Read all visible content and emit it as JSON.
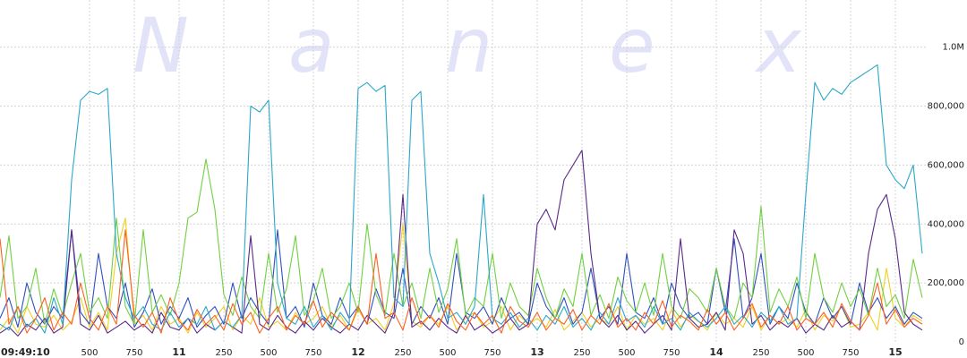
{
  "chart_data": {
    "type": "line",
    "watermark": [
      "N",
      "a",
      "n",
      "e",
      "x"
    ],
    "x": [
      10.0,
      10.05,
      10.1,
      10.15,
      10.2,
      10.25,
      10.3,
      10.35,
      10.4,
      10.45,
      10.5,
      10.55,
      10.6,
      10.65,
      10.7,
      10.75,
      10.8,
      10.85,
      10.9,
      10.95,
      11.0,
      11.05,
      11.1,
      11.15,
      11.2,
      11.25,
      11.3,
      11.35,
      11.4,
      11.45,
      11.5,
      11.55,
      11.6,
      11.65,
      11.7,
      11.75,
      11.8,
      11.85,
      11.9,
      11.95,
      12.0,
      12.05,
      12.1,
      12.15,
      12.2,
      12.25,
      12.3,
      12.35,
      12.4,
      12.45,
      12.5,
      12.55,
      12.6,
      12.65,
      12.7,
      12.75,
      12.8,
      12.85,
      12.9,
      12.95,
      13.0,
      13.05,
      13.1,
      13.15,
      13.2,
      13.25,
      13.3,
      13.35,
      13.4,
      13.45,
      13.5,
      13.55,
      13.6,
      13.65,
      13.7,
      13.75,
      13.8,
      13.85,
      13.9,
      13.95,
      14.0,
      14.05,
      14.1,
      14.15,
      14.2,
      14.25,
      14.3,
      14.35,
      14.4,
      14.45,
      14.5,
      14.55,
      14.6,
      14.65,
      14.7,
      14.75,
      14.8,
      14.85,
      14.9,
      14.95,
      15.0,
      15.05,
      15.1,
      15.15
    ],
    "series": [
      {
        "color": "#f0d020",
        "values": [
          40000,
          80000,
          30000,
          120000,
          60000,
          50000,
          90000,
          40000,
          70000,
          150000,
          50000,
          100000,
          40000,
          300000,
          420000,
          60000,
          90000,
          40000,
          120000,
          60000,
          80000,
          30000,
          100000,
          50000,
          80000,
          120000,
          40000,
          90000,
          60000,
          150000,
          50000,
          70000,
          40000,
          100000,
          60000,
          80000,
          120000,
          50000,
          90000,
          40000,
          110000,
          60000,
          80000,
          40000,
          130000,
          400000,
          70000,
          50000,
          90000,
          60000,
          120000,
          40000,
          80000,
          100000,
          50000,
          70000,
          120000,
          40000,
          90000,
          60000,
          80000,
          50000,
          110000,
          40000,
          70000,
          100000,
          50000,
          80000,
          60000,
          120000,
          40000,
          90000,
          60000,
          80000,
          40000,
          110000,
          50000,
          90000,
          70000,
          40000,
          100000,
          60000,
          80000,
          50000,
          120000,
          40000,
          90000,
          60000,
          80000,
          50000,
          110000,
          40000,
          90000,
          70000,
          120000,
          50000,
          60000,
          100000,
          40000,
          250000,
          80000,
          50000,
          90000,
          70000
        ]
      },
      {
        "color": "#3050c0",
        "values": [
          80000,
          150000,
          50000,
          200000,
          100000,
          60000,
          120000,
          80000,
          380000,
          100000,
          60000,
          300000,
          120000,
          80000,
          200000,
          50000,
          100000,
          180000,
          60000,
          120000,
          80000,
          150000,
          50000,
          90000,
          120000,
          60000,
          200000,
          80000,
          150000,
          100000,
          60000,
          380000,
          80000,
          120000,
          50000,
          200000,
          90000,
          60000,
          150000,
          80000,
          120000,
          60000,
          180000,
          100000,
          80000,
          250000,
          60000,
          120000,
          80000,
          150000,
          60000,
          300000,
          100000,
          80000,
          120000,
          60000,
          150000,
          80000,
          100000,
          60000,
          200000,
          120000,
          80000,
          150000,
          60000,
          100000,
          250000,
          80000,
          120000,
          60000,
          300000,
          100000,
          80000,
          150000,
          60000,
          200000,
          120000,
          80000,
          100000,
          60000,
          250000,
          100000,
          350000,
          80000,
          150000,
          300000,
          60000,
          120000,
          80000,
          200000,
          100000,
          60000,
          150000,
          80000,
          120000,
          60000,
          200000,
          100000,
          150000,
          80000,
          120000,
          60000,
          100000,
          80000
        ]
      },
      {
        "color": "#70d040",
        "values": [
          150000,
          360000,
          80000,
          120000,
          250000,
          60000,
          180000,
          90000,
          200000,
          300000,
          100000,
          150000,
          80000,
          420000,
          120000,
          60000,
          380000,
          100000,
          160000,
          90000,
          200000,
          420000,
          440000,
          620000,
          450000,
          160000,
          90000,
          220000,
          120000,
          80000,
          300000,
          100000,
          180000,
          360000,
          90000,
          140000,
          250000,
          80000,
          120000,
          200000,
          100000,
          400000,
          160000,
          90000,
          300000,
          120000,
          200000,
          80000,
          250000,
          100000,
          180000,
          350000,
          90000,
          150000,
          120000,
          300000,
          80000,
          200000,
          120000,
          90000,
          250000,
          150000,
          80000,
          180000,
          120000,
          300000,
          90000,
          160000,
          80000,
          220000,
          140000,
          100000,
          200000,
          90000,
          300000,
          120000,
          80000,
          180000,
          150000,
          100000,
          250000,
          120000,
          80000,
          200000,
          150000,
          460000,
          100000,
          180000,
          120000,
          220000,
          80000,
          300000,
          150000,
          100000,
          200000,
          120000,
          180000,
          90000,
          250000,
          120000,
          160000,
          80000,
          280000,
          150000
        ]
      },
      {
        "color": "#5a2a8a",
        "values": [
          30000,
          50000,
          20000,
          60000,
          40000,
          80000,
          30000,
          50000,
          380000,
          60000,
          40000,
          90000,
          30000,
          50000,
          70000,
          40000,
          60000,
          30000,
          100000,
          50000,
          40000,
          80000,
          30000,
          60000,
          40000,
          70000,
          50000,
          30000,
          360000,
          60000,
          40000,
          90000,
          50000,
          30000,
          70000,
          40000,
          80000,
          50000,
          30000,
          60000,
          40000,
          90000,
          60000,
          30000,
          100000,
          500000,
          50000,
          70000,
          40000,
          80000,
          50000,
          30000,
          90000,
          40000,
          60000,
          30000,
          50000,
          80000,
          40000,
          60000,
          400000,
          450000,
          380000,
          550000,
          600000,
          650000,
          300000,
          80000,
          50000,
          90000,
          40000,
          70000,
          30000,
          60000,
          90000,
          40000,
          350000,
          80000,
          50000,
          60000,
          100000,
          40000,
          380000,
          300000,
          60000,
          90000,
          40000,
          70000,
          50000,
          80000,
          30000,
          60000,
          40000,
          90000,
          50000,
          70000,
          40000,
          300000,
          450000,
          500000,
          350000,
          100000,
          60000,
          40000
        ]
      },
      {
        "color": "#2aa8c8",
        "values": [
          60000,
          40000,
          120000,
          50000,
          80000,
          30000,
          150000,
          60000,
          550000,
          820000,
          850000,
          840000,
          860000,
          300000,
          150000,
          80000,
          120000,
          60000,
          40000,
          100000,
          50000,
          80000,
          60000,
          120000,
          40000,
          70000,
          50000,
          90000,
          800000,
          780000,
          820000,
          200000,
          80000,
          60000,
          120000,
          50000,
          90000,
          40000,
          100000,
          60000,
          860000,
          880000,
          850000,
          870000,
          150000,
          120000,
          820000,
          850000,
          300000,
          200000,
          80000,
          100000,
          60000,
          120000,
          500000,
          80000,
          60000,
          100000,
          50000,
          80000,
          40000,
          90000,
          60000,
          120000,
          50000,
          80000,
          40000,
          100000,
          60000,
          150000,
          70000,
          90000,
          50000,
          120000,
          60000,
          80000,
          40000,
          100000,
          70000,
          50000,
          80000,
          120000,
          60000,
          90000,
          50000,
          100000,
          70000,
          120000,
          60000,
          80000,
          500000,
          880000,
          820000,
          860000,
          840000,
          880000,
          900000,
          920000,
          940000,
          600000,
          550000,
          520000,
          600000,
          300000
        ]
      },
      {
        "color": "#ff6020",
        "values": [
          350000,
          60000,
          120000,
          30000,
          80000,
          150000,
          40000,
          100000,
          60000,
          200000,
          80000,
          40000,
          120000,
          60000,
          380000,
          90000,
          50000,
          100000,
          30000,
          150000,
          70000,
          40000,
          110000,
          60000,
          90000,
          40000,
          130000,
          60000,
          100000,
          30000,
          80000,
          120000,
          40000,
          90000,
          60000,
          140000,
          50000,
          100000,
          70000,
          40000,
          120000,
          60000,
          300000,
          80000,
          100000,
          40000,
          150000,
          60000,
          90000,
          50000,
          130000,
          70000,
          40000,
          100000,
          60000,
          90000,
          30000,
          120000,
          70000,
          50000,
          100000,
          40000,
          80000,
          60000,
          110000,
          40000,
          90000,
          60000,
          130000,
          50000,
          80000,
          40000,
          100000,
          60000,
          140000,
          50000,
          90000,
          70000,
          40000,
          110000,
          60000,
          100000,
          40000,
          80000,
          130000,
          50000,
          90000,
          60000,
          120000,
          40000,
          80000,
          60000,
          100000,
          50000,
          130000,
          70000,
          40000,
          90000,
          200000,
          60000,
          110000,
          50000,
          80000,
          60000
        ]
      }
    ],
    "xlim": [
      10,
      15.175
    ],
    "xticks": [
      {
        "value": 10,
        "label": "09:49:10"
      },
      {
        "value": 10.5,
        "label": "500"
      },
      {
        "value": 10.75,
        "label": "750"
      },
      11,
      {
        "value": 11.25,
        "label": "250"
      },
      {
        "value": 11.5,
        "label": "500"
      },
      {
        "value": 11.75,
        "label": "750"
      },
      12,
      {
        "value": 12.25,
        "label": "250"
      },
      {
        "value": 12.5,
        "label": "500"
      },
      {
        "value": 12.75,
        "label": "750"
      },
      13,
      {
        "value": 13.25,
        "label": "250"
      },
      {
        "value": 13.5,
        "label": "500"
      },
      {
        "value": 13.75,
        "label": "750"
      },
      14,
      {
        "value": 14.25,
        "label": "250"
      },
      {
        "value": 14.5,
        "label": "500"
      },
      {
        "value": 14.75,
        "label": "750"
      },
      15
    ],
    "ylim": [
      0,
      1160000
    ],
    "yticks": [
      0,
      {
        "value": 200000,
        "label": "200,000"
      },
      {
        "value": 400000,
        "label": "400,000"
      },
      {
        "value": 600000,
        "label": "600,000"
      },
      {
        "value": 800000,
        "label": "800,000"
      },
      {
        "value": 1000000,
        "label": "1.0M"
      }
    ],
    "grid": true
  }
}
